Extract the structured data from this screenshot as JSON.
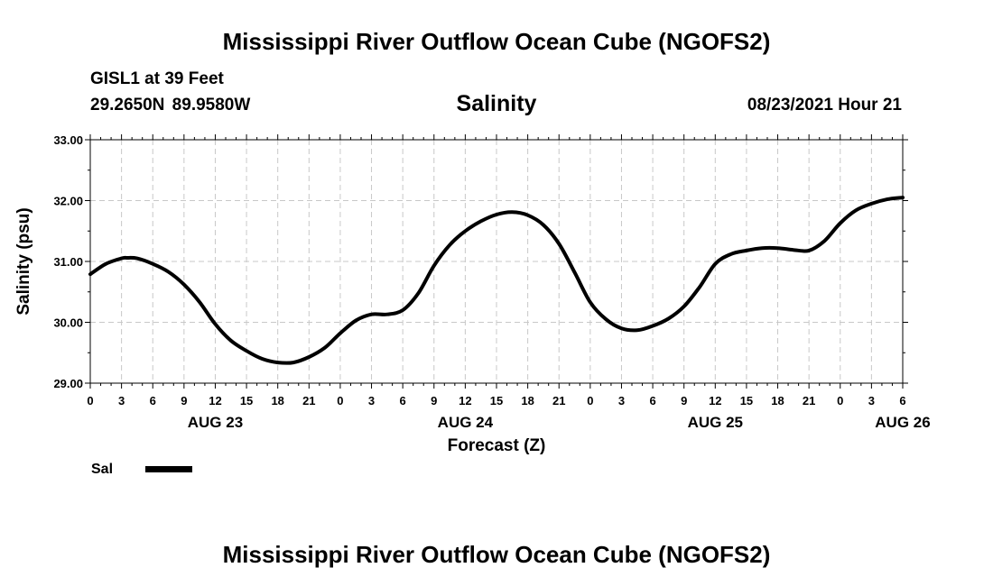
{
  "header": {
    "title": "Mississippi River Outflow Ocean Cube (NGOFS2)",
    "station": "GISL1 at 39 Feet",
    "coordinates": "29.2650N  89.9580W",
    "subtitle": "Salinity",
    "datestamp": "08/23/2021 Hour 21"
  },
  "footer": {
    "title": "Mississippi River Outflow Ocean Cube (NGOFS2)"
  },
  "chart_data": {
    "type": "line",
    "title": "Salinity",
    "xlabel": "Forecast (Z)",
    "ylabel": "Salinity (psu)",
    "xlim": [
      0,
      78
    ],
    "ylim": [
      29.0,
      33.0
    ],
    "grid": true,
    "x_unit": "hours from 00Z AUG 23",
    "y_ticks": [
      "29.00",
      "30.00",
      "31.00",
      "32.00",
      "33.00"
    ],
    "y_tick_values": [
      29,
      30,
      31,
      32,
      33
    ],
    "x_tick_labels": [
      "0",
      "3",
      "6",
      "9",
      "12",
      "15",
      "18",
      "21",
      "0",
      "3",
      "6",
      "9",
      "12",
      "15",
      "18",
      "21",
      "0",
      "3",
      "6",
      "9",
      "12",
      "15",
      "18",
      "21",
      "0",
      "3",
      "6"
    ],
    "x_day_labels": [
      {
        "label": "AUG 23",
        "hour": 12
      },
      {
        "label": "AUG 24",
        "hour": 36
      },
      {
        "label": "AUG 25",
        "hour": 60
      },
      {
        "label": "AUG 26",
        "hour": 78
      }
    ],
    "legend": {
      "label": "Sal",
      "placement": "bottom-left"
    },
    "series": [
      {
        "name": "Sal",
        "color": "#000000",
        "x": [
          0,
          1.5,
          3,
          3.5,
          4.5,
          6,
          7.5,
          9,
          10.5,
          12,
          13.5,
          15,
          16.5,
          18,
          19.5,
          21,
          22.5,
          24,
          25.5,
          27,
          28.5,
          30,
          31.5,
          33,
          34.5,
          36,
          37.5,
          39,
          40.5,
          42,
          43.5,
          45,
          46.5,
          48,
          49.5,
          51,
          52.5,
          54,
          55.5,
          57,
          58.5,
          60,
          61.5,
          63,
          64.5,
          66,
          67.5,
          69,
          70.5,
          72,
          73.5,
          75,
          76.5,
          78
        ],
        "values": [
          30.79,
          30.96,
          31.05,
          31.06,
          31.05,
          30.96,
          30.83,
          30.62,
          30.33,
          29.97,
          29.7,
          29.53,
          29.4,
          29.34,
          29.34,
          29.43,
          29.58,
          29.82,
          30.03,
          30.13,
          30.13,
          30.2,
          30.48,
          30.93,
          31.27,
          31.5,
          31.66,
          31.77,
          31.81,
          31.76,
          31.6,
          31.29,
          30.82,
          30.33,
          30.05,
          29.9,
          29.87,
          29.94,
          30.06,
          30.26,
          30.58,
          30.96,
          31.12,
          31.18,
          31.22,
          31.22,
          31.19,
          31.18,
          31.34,
          31.63,
          31.84,
          31.95,
          32.02,
          32.05
        ]
      }
    ]
  }
}
